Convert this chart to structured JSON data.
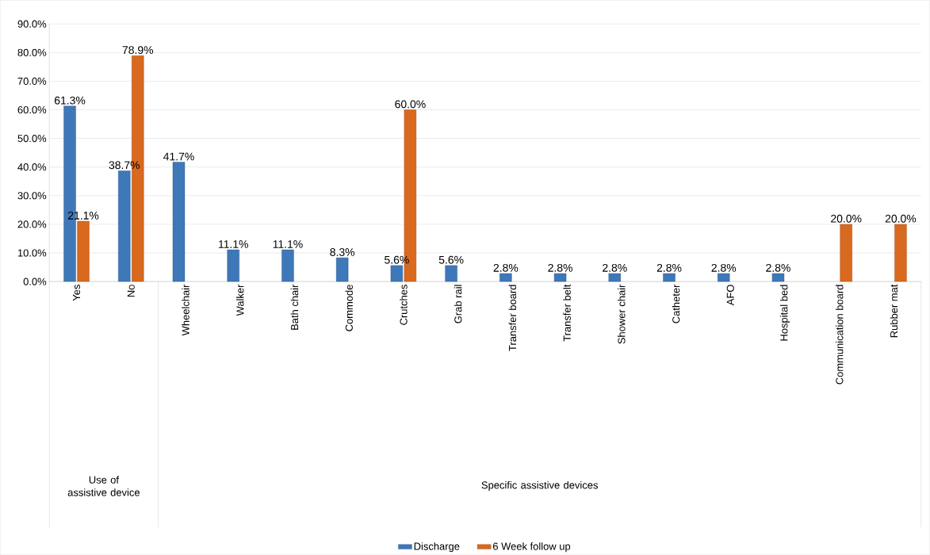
{
  "chart_data": {
    "type": "bar",
    "categories": [
      "Yes",
      "No",
      "Wheelchair",
      "Walker",
      "Bath chair",
      "Commode",
      "Crutches",
      "Grab rail",
      "Transfer board",
      "Transfer belt",
      "Shower chair",
      "Catheter",
      "AFO",
      "Hospital bed",
      "Communication board",
      "Rubber mat"
    ],
    "series": [
      {
        "name": "Discharge",
        "color": "#3f78b8",
        "values": [
          61.3,
          38.7,
          41.7,
          11.1,
          11.1,
          8.3,
          5.6,
          5.6,
          2.8,
          2.8,
          2.8,
          2.8,
          2.8,
          2.8,
          null,
          null
        ],
        "value_labels": [
          "61.3%",
          "38.7%",
          "41.7%",
          "11.1%",
          "11.1%",
          "8.3%",
          "5.6%",
          "5.6%",
          "2.8%",
          "2.8%",
          "2.8%",
          "2.8%",
          "2.8%",
          "2.8%",
          null,
          null
        ]
      },
      {
        "name": "6 Week follow up",
        "color": "#d8691f",
        "values": [
          21.1,
          78.9,
          null,
          null,
          null,
          null,
          60.0,
          null,
          null,
          null,
          null,
          null,
          null,
          null,
          20.0,
          20.0
        ],
        "value_labels": [
          "21.1%",
          "78.9%",
          null,
          null,
          null,
          null,
          "60.0%",
          null,
          null,
          null,
          null,
          null,
          null,
          null,
          "20.0%",
          "20.0%"
        ]
      }
    ],
    "ylim": [
      0,
      90
    ],
    "yticks": [
      {
        "value": 0,
        "label": "0.0%"
      },
      {
        "value": 10,
        "label": "10.0%"
      },
      {
        "value": 20,
        "label": "20.0%"
      },
      {
        "value": 30,
        "label": "30.0%"
      },
      {
        "value": 40,
        "label": "40.0%"
      },
      {
        "value": 50,
        "label": "50.0%"
      },
      {
        "value": 60,
        "label": "60.0%"
      },
      {
        "value": 70,
        "label": "70.0%"
      },
      {
        "value": 80,
        "label": "80.0%"
      },
      {
        "value": 90,
        "label": "90.0%"
      }
    ],
    "grid": "y",
    "legend": "bottom",
    "annotations": [
      "Use of assistive device",
      "Specific assistive devices"
    ]
  }
}
